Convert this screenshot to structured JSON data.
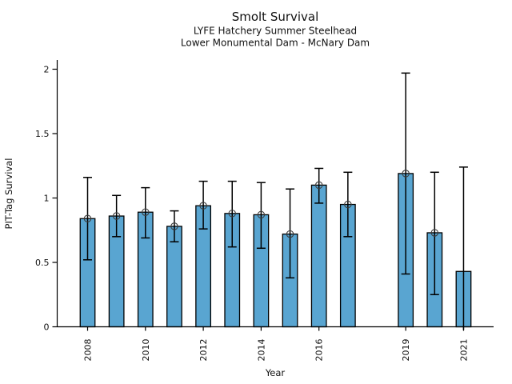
{
  "chart_data": {
    "type": "bar",
    "title": "Smolt Survival",
    "subtitles": [
      "LYFE Hatchery Summer Steelhead",
      "Lower Monumental Dam - McNary Dam"
    ],
    "xlabel": "Year",
    "ylabel": "PIT-Tag Survival",
    "categories": [
      "2008",
      "2009",
      "2010",
      "2011",
      "2012",
      "2013",
      "2014",
      "2015",
      "2016",
      "2017",
      "2019",
      "2020",
      "2021"
    ],
    "values": [
      0.84,
      0.86,
      0.89,
      0.78,
      0.94,
      0.88,
      0.87,
      0.72,
      1.1,
      0.95,
      1.19,
      0.73,
      0.43
    ],
    "error_low": [
      0.52,
      0.7,
      0.69,
      0.66,
      0.76,
      0.62,
      0.61,
      0.38,
      0.96,
      0.7,
      0.41,
      0.25,
      0.0
    ],
    "error_high": [
      1.16,
      1.02,
      1.08,
      0.9,
      1.13,
      1.13,
      1.12,
      1.07,
      1.23,
      1.2,
      1.97,
      1.2,
      1.24
    ],
    "point_marker": [
      true,
      true,
      true,
      true,
      true,
      true,
      true,
      true,
      true,
      true,
      true,
      true,
      false
    ],
    "x_tick_labels": [
      "2008",
      "2010",
      "2012",
      "2014",
      "2016",
      "2019",
      "2021"
    ],
    "y_ticks": [
      0,
      0.5,
      1,
      1.5,
      2
    ],
    "y_tick_labels": [
      "0",
      "0.5",
      "1",
      "1.5",
      "2"
    ],
    "ylim": [
      0,
      2.07
    ],
    "grid": false,
    "legend": "none",
    "bar_color": "#59a5d1",
    "bar_edge_color": "#000000",
    "error_color": "#000000",
    "marker_style": "open-circle",
    "marker_color": "#3c3c3c"
  }
}
